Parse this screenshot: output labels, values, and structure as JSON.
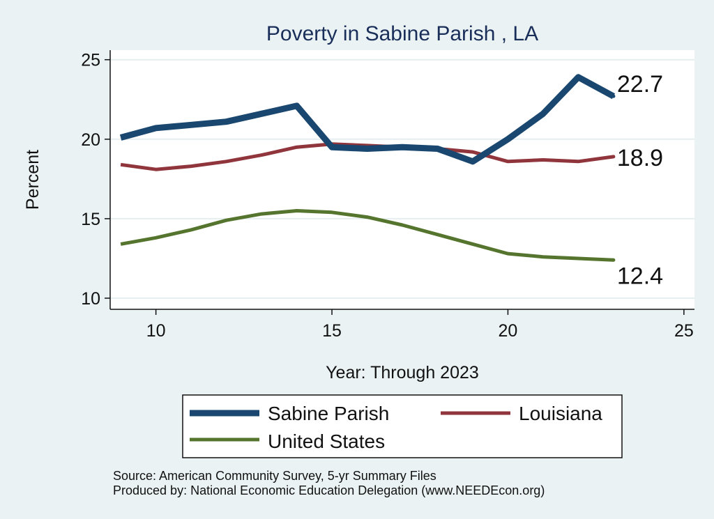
{
  "chart_data": {
    "type": "line",
    "title": "Poverty in Sabine Parish , LA",
    "xlabel": "Year: Through 2023",
    "ylabel": "Percent",
    "xlim": [
      8.7,
      25.3
    ],
    "ylim": [
      9.3,
      25.6
    ],
    "xticks": [
      10,
      15,
      20,
      25
    ],
    "yticks": [
      10,
      15,
      20,
      25
    ],
    "grid": true,
    "x": [
      9,
      10,
      11,
      12,
      13,
      14,
      15,
      16,
      17,
      18,
      19,
      20,
      21,
      22,
      23
    ],
    "series": [
      {
        "name": "Sabine Parish",
        "color": "#1a476f",
        "values": [
          20.1,
          20.7,
          20.9,
          21.1,
          21.6,
          22.1,
          19.5,
          19.4,
          19.5,
          19.4,
          18.6,
          20.0,
          21.6,
          23.9,
          22.7
        ],
        "end_label": "22.7"
      },
      {
        "name": "Louisiana",
        "color": "#90353b",
        "values": [
          18.4,
          18.1,
          18.3,
          18.6,
          19.0,
          19.5,
          19.7,
          19.6,
          19.5,
          19.4,
          19.2,
          18.6,
          18.7,
          18.6,
          18.9
        ],
        "end_label": "18.9"
      },
      {
        "name": "United States",
        "color": "#55752f",
        "values": [
          13.4,
          13.8,
          14.3,
          14.9,
          15.3,
          15.5,
          15.4,
          15.1,
          14.6,
          14.0,
          13.4,
          12.8,
          12.6,
          12.5,
          12.4
        ],
        "end_label": "12.4"
      }
    ],
    "legend": [
      "Sabine Parish",
      "Louisiana",
      "United States"
    ],
    "legend_position": "bottom"
  },
  "footer": {
    "source": "Source: American Community Survey, 5-yr Summary Files",
    "produced_by": "Produced by: National Economic Education Delegation (www.NEEDEcon.org)"
  }
}
